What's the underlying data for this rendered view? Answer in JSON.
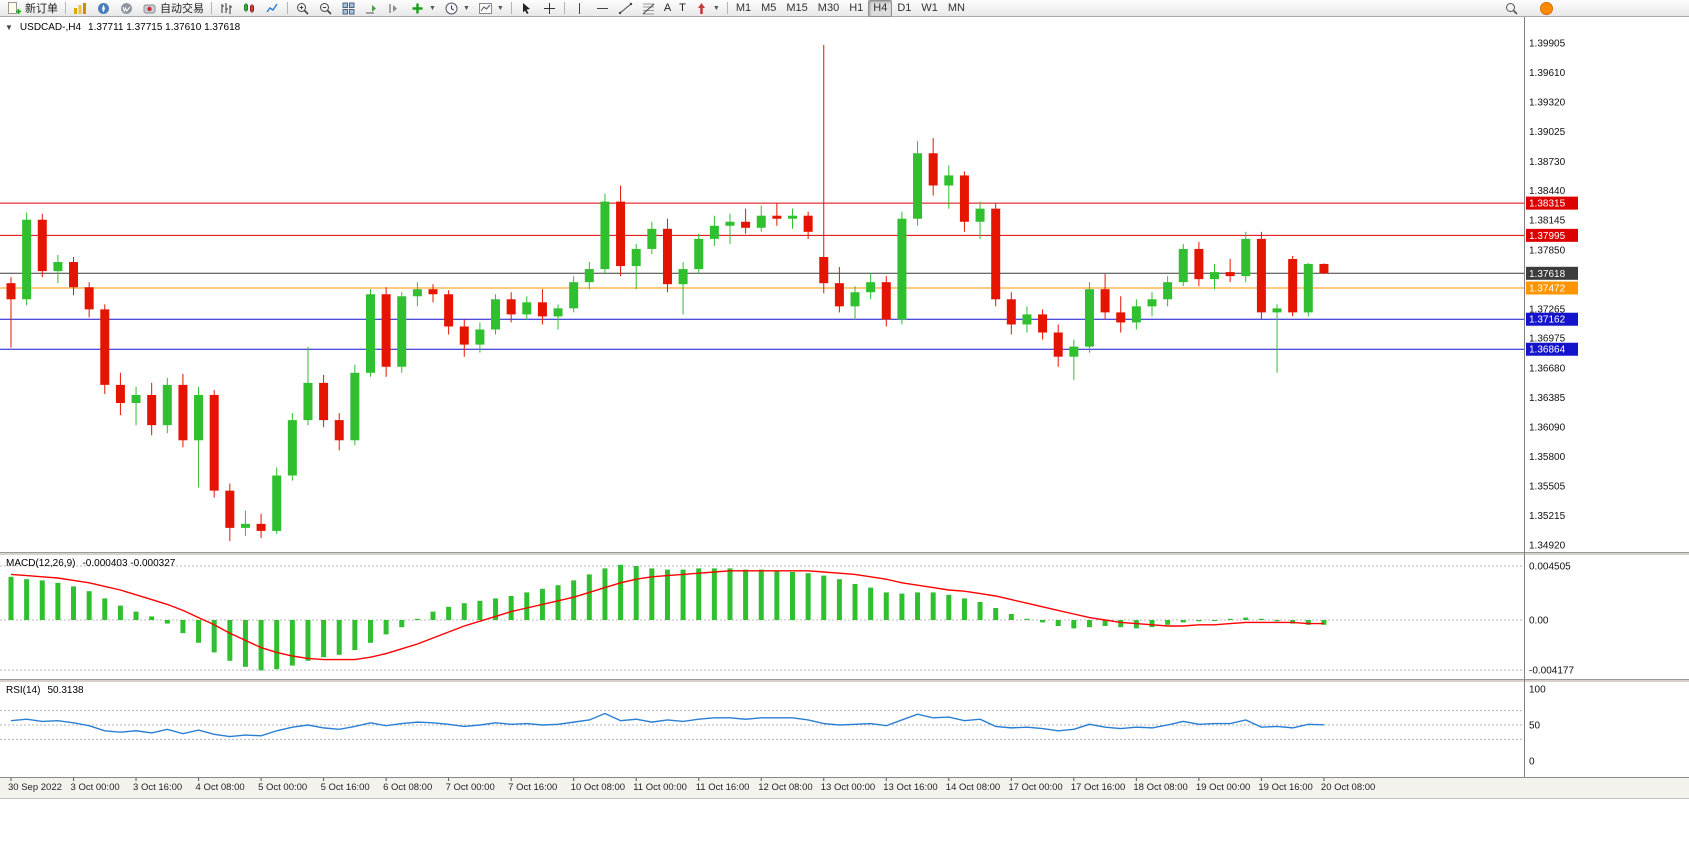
{
  "toolbar": {
    "new_order_label": "新订单",
    "auto_trading_label": "自动交易",
    "text_tool_label": "A",
    "label_tool_label": "T",
    "timeframes": [
      "M1",
      "M5",
      "M15",
      "M30",
      "H1",
      "H4",
      "D1",
      "W1",
      "MN"
    ],
    "active_timeframe": "H4"
  },
  "chart": {
    "symbol_period": "USDCAD-,H4",
    "ohlc_text": "1.37711 1.37715 1.37610 1.37618",
    "price_axis_labels": [
      "1.39905",
      "1.39610",
      "1.39320",
      "1.39025",
      "1.38730",
      "1.38440",
      "1.38145",
      "1.37850",
      "1.37265",
      "1.36975",
      "1.36680",
      "1.36385",
      "1.36090",
      "1.35800",
      "1.35505",
      "1.35215",
      "1.34920"
    ],
    "levels": [
      {
        "price": 1.38315,
        "label": "1.38315",
        "color": "#dd0000",
        "type": "resistance"
      },
      {
        "price": 1.37995,
        "label": "1.37995",
        "color": "#dd0000",
        "type": "resistance"
      },
      {
        "price": 1.37618,
        "label": "1.37618",
        "color": "#3c3c3c",
        "type": "bid"
      },
      {
        "price": 1.37472,
        "label": "1.37472",
        "color": "#ff9500",
        "type": "level"
      },
      {
        "price": 1.37162,
        "label": "1.37162",
        "color": "#1414cc",
        "type": "support"
      },
      {
        "price": 1.36864,
        "label": "1.36864",
        "color": "#1414cc",
        "type": "support"
      }
    ],
    "macd_label": "MACD(12,26,9)",
    "macd_values": "-0.000403 -0.000327",
    "macd_axis_labels": [
      "0.004505",
      "0.00",
      "-0.004177"
    ],
    "rsi_label": "RSI(14)",
    "rsi_value": "50.3138",
    "rsi_axis_labels": [
      "100",
      "50",
      "0"
    ]
  },
  "colors": {
    "bull": "#2fbf2f",
    "bear": "#e51400",
    "macd_hist": "#2fbf2f",
    "macd_signal": "#ff0000",
    "rsi_line": "#2a7fd4"
  },
  "chart_data": {
    "type": "candlestick",
    "symbol": "USDCAD",
    "timeframe": "H4",
    "ohlc_current": {
      "open": "1.37711",
      "high": "1.37715",
      "low": "1.37610",
      "close": "1.37618"
    },
    "price_range": [
      1.3492,
      1.39905
    ],
    "time_labels": [
      "30 Sep 2022",
      "3 Oct 00:00",
      "3 Oct 16:00",
      "4 Oct 08:00",
      "5 Oct 00:00",
      "5 Oct 16:00",
      "6 Oct 08:00",
      "7 Oct 00:00",
      "7 Oct 16:00",
      "10 Oct 08:00",
      "11 Oct 00:00",
      "11 Oct 16:00",
      "12 Oct 08:00",
      "13 Oct 00:00",
      "13 Oct 16:00",
      "14 Oct 08:00",
      "17 Oct 00:00",
      "17 Oct 16:00",
      "18 Oct 08:00",
      "19 Oct 00:00",
      "19 Oct 16:00",
      "20 Oct 08:00"
    ],
    "bars_per_label": 4,
    "horizontal_lines": [
      1.38315,
      1.37995,
      1.37618,
      1.37472,
      1.37162,
      1.36864
    ],
    "candles_ohlc": [
      [
        1.3752,
        1.3758,
        1.3688,
        1.3736
      ],
      [
        1.3736,
        1.3822,
        1.373,
        1.3815
      ],
      [
        1.3815,
        1.3821,
        1.3758,
        1.3764
      ],
      [
        1.3764,
        1.378,
        1.3752,
        1.3773
      ],
      [
        1.3773,
        1.3778,
        1.374,
        1.3748
      ],
      [
        1.3748,
        1.3753,
        1.3718,
        1.3726
      ],
      [
        1.3726,
        1.3731,
        1.3642,
        1.3651
      ],
      [
        1.3651,
        1.3663,
        1.3621,
        1.3633
      ],
      [
        1.3633,
        1.3649,
        1.3611,
        1.3641
      ],
      [
        1.3641,
        1.3653,
        1.3601,
        1.3611
      ],
      [
        1.3611,
        1.3658,
        1.3603,
        1.3651
      ],
      [
        1.3651,
        1.3662,
        1.3589,
        1.3596
      ],
      [
        1.3596,
        1.3649,
        1.3549,
        1.3641
      ],
      [
        1.3641,
        1.3646,
        1.3539,
        1.3546
      ],
      [
        1.3546,
        1.3553,
        1.3496,
        1.3509
      ],
      [
        1.3509,
        1.3526,
        1.3501,
        1.3513
      ],
      [
        1.3513,
        1.3523,
        1.3499,
        1.3506
      ],
      [
        1.3506,
        1.3569,
        1.3503,
        1.3561
      ],
      [
        1.3561,
        1.3623,
        1.3556,
        1.3616
      ],
      [
        1.3616,
        1.3689,
        1.3611,
        1.3653
      ],
      [
        1.3653,
        1.3661,
        1.3609,
        1.3616
      ],
      [
        1.3616,
        1.3623,
        1.3586,
        1.3596
      ],
      [
        1.3596,
        1.3671,
        1.3591,
        1.3663
      ],
      [
        1.3663,
        1.3746,
        1.3659,
        1.3741
      ],
      [
        1.3741,
        1.3748,
        1.3659,
        1.3669
      ],
      [
        1.3669,
        1.3743,
        1.3663,
        1.3739
      ],
      [
        1.3739,
        1.3753,
        1.3729,
        1.3746
      ],
      [
        1.3746,
        1.3751,
        1.3733,
        1.3741
      ],
      [
        1.3741,
        1.3745,
        1.3701,
        1.3709
      ],
      [
        1.3709,
        1.3716,
        1.3679,
        1.3691
      ],
      [
        1.3691,
        1.3713,
        1.3683,
        1.3706
      ],
      [
        1.3706,
        1.3741,
        1.3701,
        1.3736
      ],
      [
        1.3736,
        1.3743,
        1.3713,
        1.3721
      ],
      [
        1.3721,
        1.3739,
        1.3716,
        1.3733
      ],
      [
        1.3733,
        1.3746,
        1.3711,
        1.3719
      ],
      [
        1.3719,
        1.3731,
        1.3706,
        1.3727
      ],
      [
        1.3727,
        1.3759,
        1.3723,
        1.3753
      ],
      [
        1.3753,
        1.3773,
        1.3746,
        1.3766
      ],
      [
        1.3766,
        1.3841,
        1.3761,
        1.3833
      ],
      [
        1.3833,
        1.3849,
        1.3759,
        1.3769
      ],
      [
        1.3769,
        1.3791,
        1.3746,
        1.3786
      ],
      [
        1.3786,
        1.3813,
        1.3781,
        1.3806
      ],
      [
        1.3806,
        1.3816,
        1.3743,
        1.3751
      ],
      [
        1.3751,
        1.3773,
        1.3721,
        1.3766
      ],
      [
        1.3766,
        1.3801,
        1.3761,
        1.3796
      ],
      [
        1.3796,
        1.3819,
        1.3789,
        1.3809
      ],
      [
        1.3809,
        1.3821,
        1.3791,
        1.3813
      ],
      [
        1.3813,
        1.3826,
        1.3801,
        1.3807
      ],
      [
        1.3807,
        1.3829,
        1.3803,
        1.3819
      ],
      [
        1.3819,
        1.3831,
        1.3809,
        1.3816
      ],
      [
        1.3816,
        1.3826,
        1.3806,
        1.3819
      ],
      [
        1.3819,
        1.3823,
        1.3796,
        1.3803
      ],
      [
        1.3778,
        1.39885,
        1.3742,
        1.3752
      ],
      [
        1.3752,
        1.3768,
        1.3723,
        1.3729
      ],
      [
        1.3729,
        1.3749,
        1.3716,
        1.3743
      ],
      [
        1.3743,
        1.3761,
        1.3736,
        1.3753
      ],
      [
        1.3753,
        1.3759,
        1.3709,
        1.3716
      ],
      [
        1.3716,
        1.3823,
        1.3711,
        1.3816
      ],
      [
        1.3816,
        1.3893,
        1.3809,
        1.3881
      ],
      [
        1.3881,
        1.3896,
        1.3839,
        1.3849
      ],
      [
        1.3849,
        1.3869,
        1.3826,
        1.3859
      ],
      [
        1.3859,
        1.3863,
        1.3803,
        1.3813
      ],
      [
        1.3813,
        1.3833,
        1.3796,
        1.3826
      ],
      [
        1.3826,
        1.3831,
        1.3729,
        1.3736
      ],
      [
        1.3736,
        1.3743,
        1.3701,
        1.3711
      ],
      [
        1.3711,
        1.3729,
        1.3703,
        1.3721
      ],
      [
        1.3721,
        1.3726,
        1.3696,
        1.3703
      ],
      [
        1.3703,
        1.3711,
        1.3669,
        1.3679
      ],
      [
        1.3679,
        1.3696,
        1.3656,
        1.3689
      ],
      [
        1.3689,
        1.3753,
        1.3683,
        1.3746
      ],
      [
        1.3746,
        1.3761,
        1.3716,
        1.3723
      ],
      [
        1.3723,
        1.3739,
        1.3703,
        1.3713
      ],
      [
        1.3713,
        1.3736,
        1.3706,
        1.3729
      ],
      [
        1.3729,
        1.3743,
        1.3719,
        1.3736
      ],
      [
        1.3736,
        1.3759,
        1.3729,
        1.3753
      ],
      [
        1.3753,
        1.3791,
        1.3749,
        1.3786
      ],
      [
        1.3786,
        1.3793,
        1.3749,
        1.3756
      ],
      [
        1.3756,
        1.3771,
        1.3746,
        1.3763
      ],
      [
        1.3763,
        1.3776,
        1.3753,
        1.3759
      ],
      [
        1.3759,
        1.3803,
        1.3753,
        1.3796
      ],
      [
        1.3796,
        1.3803,
        1.3716,
        1.3723
      ],
      [
        1.3723,
        1.3731,
        1.3663,
        1.3727
      ],
      [
        1.3776,
        1.3779,
        1.3719,
        1.3723
      ],
      [
        1.3723,
        1.3772,
        1.3719,
        1.37711
      ],
      [
        1.37711,
        1.37715,
        1.3761,
        1.37618
      ]
    ],
    "indicators": {
      "macd": {
        "params": "12,26,9",
        "current_histogram": -0.000403,
        "current_signal": -0.000327,
        "range": [
          -0.004177,
          0.004505
        ],
        "histogram": [
          0.0036,
          0.0034,
          0.0033,
          0.0031,
          0.0028,
          0.0024,
          0.0018,
          0.0012,
          0.0007,
          0.0003,
          -0.0003,
          -0.0011,
          -0.0019,
          -0.0027,
          -0.0034,
          -0.0039,
          -0.0042,
          -0.0041,
          -0.0038,
          -0.0034,
          -0.0031,
          -0.0029,
          -0.0025,
          -0.0019,
          -0.0012,
          -0.0006,
          0.0001,
          0.0007,
          0.0011,
          0.0014,
          0.0016,
          0.0018,
          0.002,
          0.0023,
          0.0026,
          0.0029,
          0.0033,
          0.0038,
          0.0043,
          0.0046,
          0.0045,
          0.0043,
          0.0042,
          0.0042,
          0.0043,
          0.0043,
          0.0043,
          0.0042,
          0.0042,
          0.0041,
          0.004,
          0.0039,
          0.0037,
          0.0034,
          0.003,
          0.0027,
          0.0023,
          0.0022,
          0.0023,
          0.0023,
          0.0021,
          0.0018,
          0.0015,
          0.001,
          0.0005,
          0.0001,
          -0.0002,
          -0.0005,
          -0.0007,
          -0.0006,
          -0.0005,
          -0.0006,
          -0.0007,
          -0.0006,
          -0.0004,
          -0.0002,
          -0.0001,
          0.0,
          0.0001,
          0.0002,
          0.0001,
          -0.0001,
          -0.0003,
          -0.0004,
          -0.0004
        ],
        "signal": [
          0.0038,
          0.0037,
          0.0036,
          0.0035,
          0.0033,
          0.0031,
          0.0028,
          0.0025,
          0.0021,
          0.0017,
          0.0013,
          0.0008,
          0.0002,
          -0.0004,
          -0.0011,
          -0.0017,
          -0.0023,
          -0.0027,
          -0.003,
          -0.0032,
          -0.0033,
          -0.0033,
          -0.0033,
          -0.0031,
          -0.0028,
          -0.0024,
          -0.002,
          -0.0015,
          -0.001,
          -0.0005,
          -0.0001,
          0.0003,
          0.0007,
          0.001,
          0.0013,
          0.0016,
          0.0019,
          0.0023,
          0.0027,
          0.0031,
          0.0034,
          0.0036,
          0.0037,
          0.0038,
          0.0039,
          0.004,
          0.0041,
          0.0041,
          0.0041,
          0.0041,
          0.0041,
          0.0041,
          0.004,
          0.0039,
          0.0038,
          0.0036,
          0.0034,
          0.0031,
          0.0029,
          0.0027,
          0.0025,
          0.0024,
          0.0022,
          0.002,
          0.0017,
          0.0014,
          0.0011,
          0.0008,
          0.0005,
          0.0002,
          0.0,
          -0.0002,
          -0.0003,
          -0.0004,
          -0.0005,
          -0.0005,
          -0.0004,
          -0.0004,
          -0.0003,
          -0.0002,
          -0.0002,
          -0.0002,
          -0.0002,
          -0.0003,
          -0.0003
        ]
      },
      "rsi": {
        "params": "14",
        "current": 50.3138,
        "range": [
          0,
          100
        ],
        "levels": [
          30,
          50,
          70
        ],
        "values": [
          56,
          58,
          55,
          56,
          53,
          49,
          42,
          40,
          42,
          39,
          44,
          38,
          43,
          37,
          34,
          36,
          35,
          42,
          47,
          50,
          46,
          44,
          48,
          53,
          49,
          52,
          54,
          53,
          51,
          48,
          50,
          53,
          51,
          52,
          50,
          51,
          54,
          57,
          66,
          56,
          58,
          54,
          57,
          55,
          58,
          60,
          60,
          58,
          60,
          60,
          60,
          57,
          52,
          50,
          51,
          52,
          49,
          57,
          65,
          60,
          61,
          56,
          58,
          48,
          46,
          47,
          45,
          42,
          44,
          51,
          47,
          45,
          47,
          46,
          50,
          55,
          51,
          52,
          52,
          57,
          47,
          48,
          46,
          51,
          50.31
        ]
      }
    }
  }
}
